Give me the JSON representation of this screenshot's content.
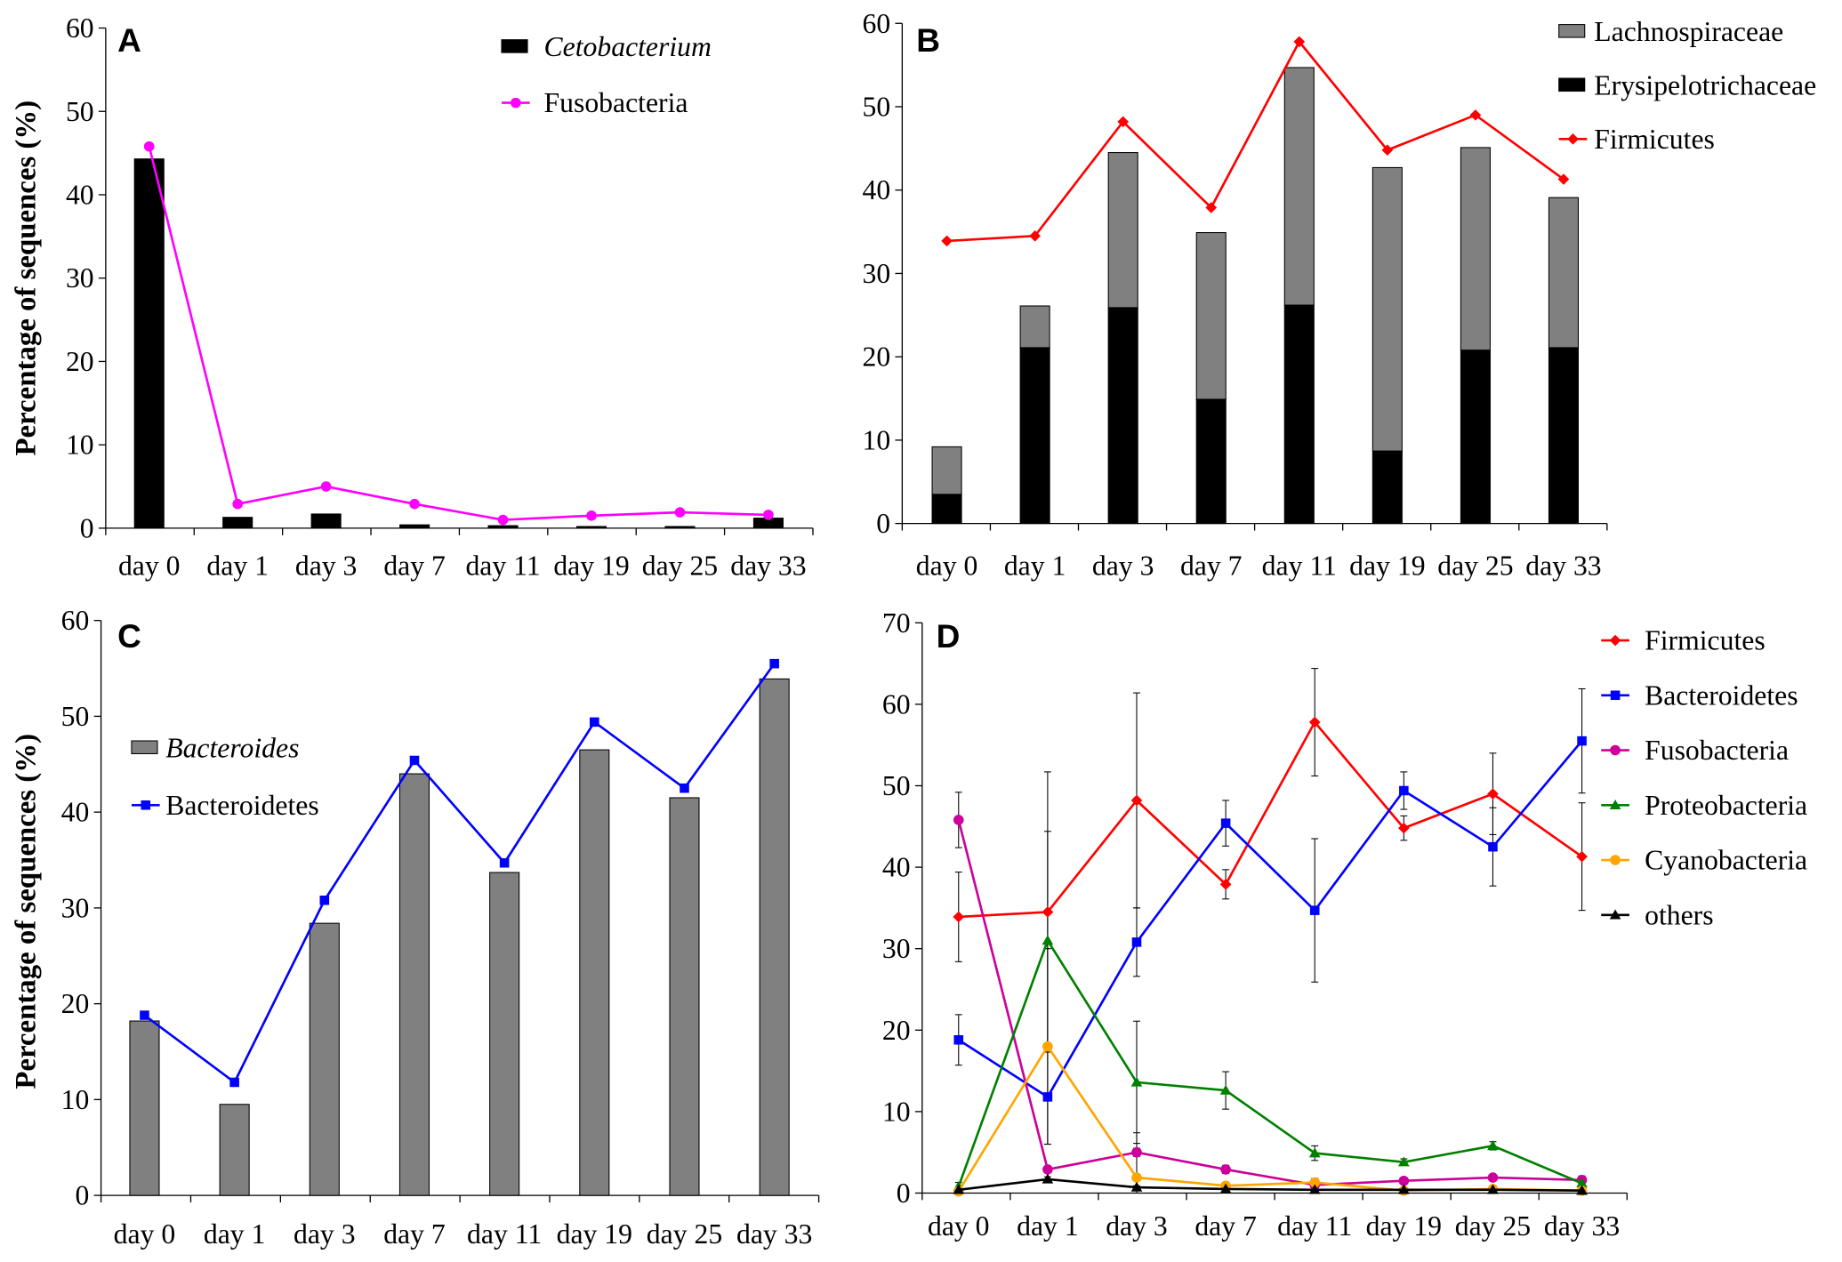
{
  "chart_data": [
    {
      "panel": "A",
      "type": "bar+line",
      "categories": [
        "day 0",
        "day 1",
        "day 3",
        "day 7",
        "day 11",
        "day 19",
        "day 25",
        "day 33"
      ],
      "ylabel": "Percentage of sequences (%)",
      "ylim": [
        0,
        60
      ],
      "yticks": [
        0,
        10,
        20,
        30,
        40,
        50,
        60
      ],
      "bars": [
        {
          "name": "Cetobacterium",
          "italic": true,
          "color": "#000000",
          "values": [
            44.3,
            1.3,
            1.7,
            0.4,
            0.3,
            0.2,
            0.2,
            1.2
          ]
        }
      ],
      "lines": [
        {
          "name": "Fusobacteria",
          "color": "#ff00ff",
          "marker": "circle",
          "values": [
            45.8,
            2.9,
            5.0,
            2.9,
            1.0,
            1.5,
            1.9,
            1.6
          ]
        }
      ]
    },
    {
      "panel": "B",
      "type": "stacked-bar+line",
      "categories": [
        "day 0",
        "day 1",
        "day 3",
        "day 7",
        "day 11",
        "day 19",
        "day 25",
        "day 33"
      ],
      "ylabel": "",
      "ylim": [
        0,
        60
      ],
      "yticks": [
        0,
        10,
        20,
        30,
        40,
        50,
        60
      ],
      "bars": [
        {
          "name": "Lachnospiraceae",
          "italic": false,
          "color": "#808080",
          "values": [
            5.7,
            5.0,
            18.6,
            20.0,
            28.5,
            34.0,
            24.3,
            18.0
          ]
        },
        {
          "name": "Erysipelotrichaceae",
          "italic": false,
          "color": "#000000",
          "values": [
            3.5,
            21.1,
            25.9,
            14.9,
            26.2,
            8.7,
            20.8,
            21.1
          ]
        }
      ],
      "stack_order": [
        "Erysipelotrichaceae",
        "Lachnospiraceae"
      ],
      "lines": [
        {
          "name": "Firmicutes",
          "color": "#ff0000",
          "marker": "diamond",
          "values": [
            33.9,
            34.5,
            48.2,
            37.9,
            57.8,
            44.8,
            49.0,
            41.3
          ]
        }
      ]
    },
    {
      "panel": "C",
      "type": "bar+line",
      "categories": [
        "day 0",
        "day 1",
        "day 3",
        "day 7",
        "day 11",
        "day 19",
        "day 25",
        "day 33"
      ],
      "ylabel": "Percentage of sequences (%)",
      "ylim": [
        0,
        60
      ],
      "yticks": [
        0,
        10,
        20,
        30,
        40,
        50,
        60
      ],
      "bars": [
        {
          "name": "Bacteroides",
          "italic": true,
          "color": "#808080",
          "values": [
            18.2,
            9.5,
            28.4,
            44.0,
            33.7,
            46.5,
            41.5,
            53.9
          ]
        }
      ],
      "lines": [
        {
          "name": "Bacteroidetes",
          "color": "#0000ff",
          "marker": "square",
          "values": [
            18.8,
            11.8,
            30.8,
            45.4,
            34.7,
            49.4,
            42.5,
            55.5
          ]
        }
      ]
    },
    {
      "panel": "D",
      "type": "line",
      "categories": [
        "day 0",
        "day 1",
        "day 3",
        "day 7",
        "day 11",
        "day 19",
        "day 25",
        "day 33"
      ],
      "ylabel": "",
      "ylim": [
        0,
        70
      ],
      "yticks": [
        0,
        10,
        20,
        30,
        40,
        50,
        60,
        70
      ],
      "bars": [],
      "lines": [
        {
          "name": "Firmicutes",
          "color": "#ff0000",
          "marker": "diamond",
          "values": [
            33.9,
            34.5,
            48.2,
            37.9,
            57.8,
            44.8,
            49.0,
            41.3
          ],
          "errors": [
            5.5,
            17.2,
            13.2,
            1.8,
            6.6,
            1.5,
            5.0,
            6.6
          ]
        },
        {
          "name": "Bacteroidetes",
          "color": "#0000ff",
          "marker": "square",
          "values": [
            18.8,
            11.8,
            30.8,
            45.4,
            34.7,
            49.4,
            42.5,
            55.5
          ],
          "errors": [
            3.1,
            5.8,
            4.2,
            2.8,
            8.8,
            2.3,
            4.8,
            6.4
          ]
        },
        {
          "name": "Fusobacteria",
          "color": "#cc0099",
          "marker": "circle",
          "values": [
            45.8,
            2.9,
            5.0,
            2.9,
            1.0,
            1.5,
            1.9,
            1.6
          ],
          "errors": [
            3.4,
            0.3,
            0.5,
            0.5,
            0.3,
            0.3,
            0.3,
            0.5
          ]
        },
        {
          "name": "Proteobacteria",
          "color": "#008000",
          "marker": "triangle",
          "values": [
            0.8,
            31.0,
            13.6,
            12.6,
            4.9,
            3.8,
            5.8,
            1.2
          ],
          "errors": [
            0.5,
            13.4,
            7.5,
            2.3,
            0.9,
            0.4,
            0.5,
            0.5
          ]
        },
        {
          "name": "Cyanobacteria",
          "color": "#ffa500",
          "marker": "circle",
          "values": [
            0.2,
            18.0,
            1.9,
            0.9,
            1.3,
            0.3,
            0.5,
            0.3
          ],
          "errors": [
            0.2,
            12.0,
            5.5,
            0.3,
            0.5,
            0.2,
            0.2,
            0.2
          ]
        },
        {
          "name": "others",
          "color": "#000000",
          "marker": "triangle",
          "values": [
            0.4,
            1.7,
            0.7,
            0.5,
            0.4,
            0.4,
            0.4,
            0.3
          ],
          "errors": [
            0.2,
            0.3,
            0.2,
            0.2,
            0.2,
            0.2,
            0.2,
            0.2
          ]
        }
      ]
    }
  ]
}
